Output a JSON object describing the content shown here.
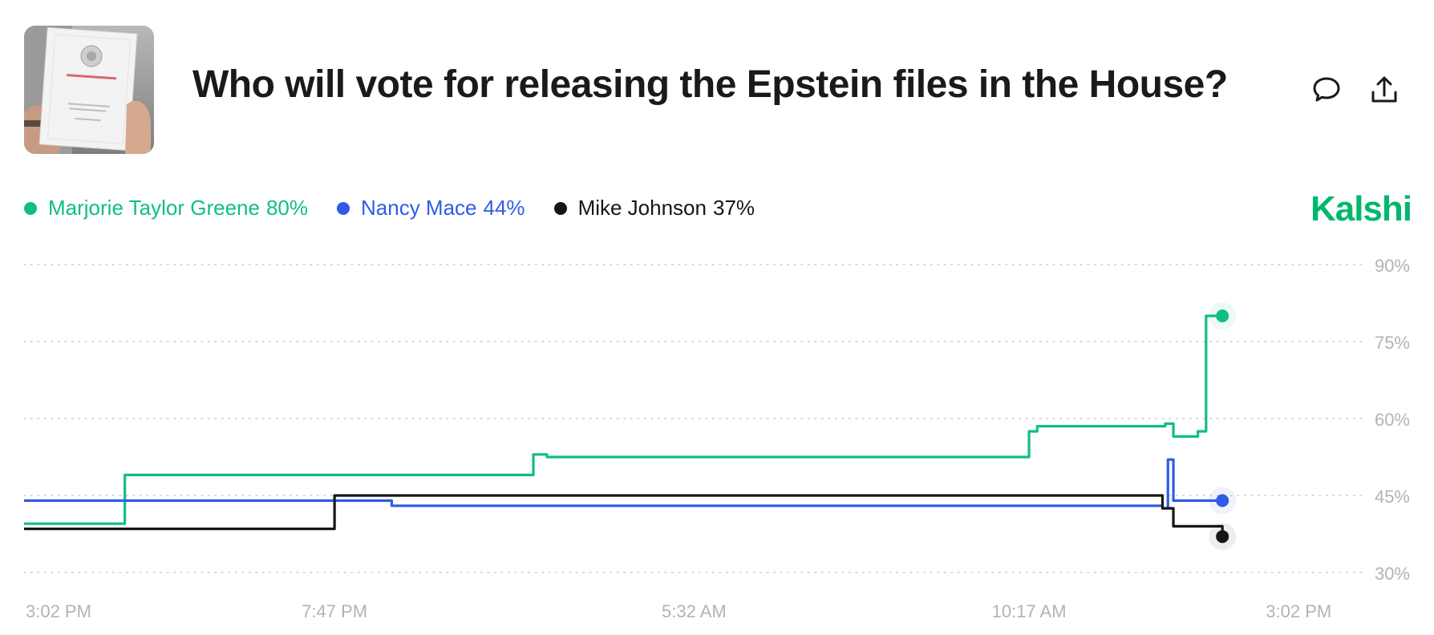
{
  "header": {
    "title": "Who will vote for releasing the Epstein files in the House?",
    "brand": "Kalshi"
  },
  "icons": {
    "comment": "comment-icon",
    "share": "share-icon"
  },
  "legend": [
    {
      "name": "Marjorie Taylor Greene",
      "value": "80%",
      "color": "#0fbf7f"
    },
    {
      "name": "Nancy Mace",
      "value": "44%",
      "color": "#2f5be8"
    },
    {
      "name": "Mike Johnson",
      "value": "37%",
      "color": "#161616"
    }
  ],
  "chart_data": {
    "type": "line",
    "step": true,
    "title": "Who will vote for releasing the Epstein files in the House?",
    "xlabel": "",
    "ylabel": "",
    "x_tick_labels": [
      "3:02 PM",
      "7:47 PM",
      "5:32 AM",
      "10:17 AM",
      "3:02 PM"
    ],
    "y_ticks": [
      30,
      45,
      60,
      75,
      90
    ],
    "y_tick_labels": [
      "30%",
      "45%",
      "60%",
      "75%",
      "90%"
    ],
    "ylim": [
      30,
      90
    ],
    "xlim": [
      0,
      24
    ],
    "x_unit": "hours since 3:02 PM",
    "grid": true,
    "legend_position": "top-left",
    "series": [
      {
        "name": "Marjorie Taylor Greene",
        "color": "#0fbf7f",
        "end_label": "80%",
        "x": [
          0,
          1.85,
          7.45,
          9.35,
          9.6,
          18.45,
          18.6,
          20.95,
          21.1,
          21.55,
          21.7
        ],
        "y": [
          39.5,
          49,
          49,
          53,
          52.5,
          57.5,
          58.5,
          59,
          56.5,
          57.5,
          80
        ]
      },
      {
        "name": "Nancy Mace",
        "color": "#2f5be8",
        "end_label": "44%",
        "x": [
          0,
          6.75,
          20.9,
          21.0,
          21.1,
          22.0
        ],
        "y": [
          44,
          43,
          42.5,
          52,
          44,
          44
        ]
      },
      {
        "name": "Mike Johnson",
        "color": "#161616",
        "end_label": "37%",
        "x": [
          0,
          5.7,
          20.9,
          21.1,
          22.0
        ],
        "y": [
          38.5,
          45,
          42.5,
          39,
          37
        ]
      }
    ]
  }
}
